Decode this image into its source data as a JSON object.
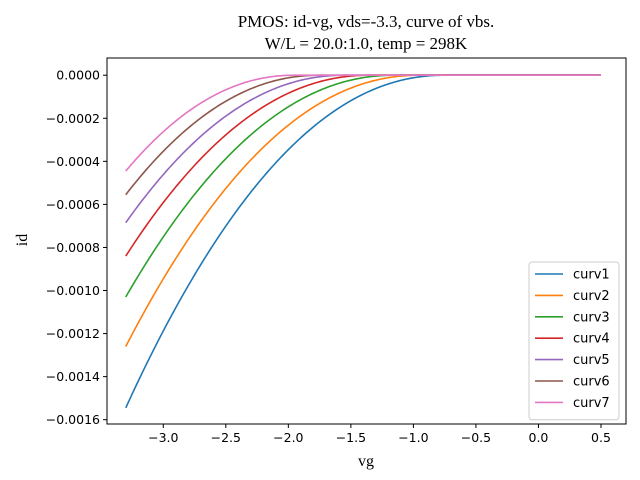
{
  "chart_data": {
    "type": "line",
    "title_line1": "PMOS: id-vg, vds=-3.3, curve of vbs.",
    "title_line2": "W/L = 20.0:1.0, temp = 298K",
    "xlabel": "vg",
    "ylabel": "id",
    "xlim": [
      -3.45,
      0.7
    ],
    "ylim": [
      -0.00162,
      8e-05
    ],
    "xticks": [
      -3.0,
      -2.5,
      -2.0,
      -1.5,
      -1.0,
      -0.5,
      0.0,
      0.5
    ],
    "xtick_labels": [
      "−3.0",
      "−2.5",
      "−2.0",
      "−1.5",
      "−1.0",
      "−0.5",
      "0.0",
      "0.5"
    ],
    "yticks": [
      0.0,
      -0.0002,
      -0.0004,
      -0.0006,
      -0.0008,
      -0.001,
      -0.0012,
      -0.0014,
      -0.0016
    ],
    "ytick_labels": [
      "0.0000",
      "−0.0002",
      "−0.0004",
      "−0.0006",
      "−0.0008",
      "−0.0010",
      "−0.0012",
      "−0.0014",
      "−0.0016"
    ],
    "grid": false,
    "legend_position": "lower-right",
    "x_range": [
      -3.3,
      0.5
    ],
    "series": [
      {
        "name": "curv1",
        "color": "#1f77b4",
        "vg_at_zero": -0.75,
        "id_at_min_vg": -0.001545
      },
      {
        "name": "curv2",
        "color": "#ff7f0e",
        "vg_at_zero": -0.95,
        "id_at_min_vg": -0.00126
      },
      {
        "name": "curv3",
        "color": "#2ca02c",
        "vg_at_zero": -1.15,
        "id_at_min_vg": -0.00103
      },
      {
        "name": "curv4",
        "color": "#d62728",
        "vg_at_zero": -1.35,
        "id_at_min_vg": -0.00084
      },
      {
        "name": "curv5",
        "color": "#9467bd",
        "vg_at_zero": -1.55,
        "id_at_min_vg": -0.000685
      },
      {
        "name": "curv6",
        "color": "#8c564b",
        "vg_at_zero": -1.75,
        "id_at_min_vg": -0.000555
      },
      {
        "name": "curv7",
        "color": "#e377c2",
        "vg_at_zero": -1.95,
        "id_at_min_vg": -0.000445
      }
    ]
  }
}
